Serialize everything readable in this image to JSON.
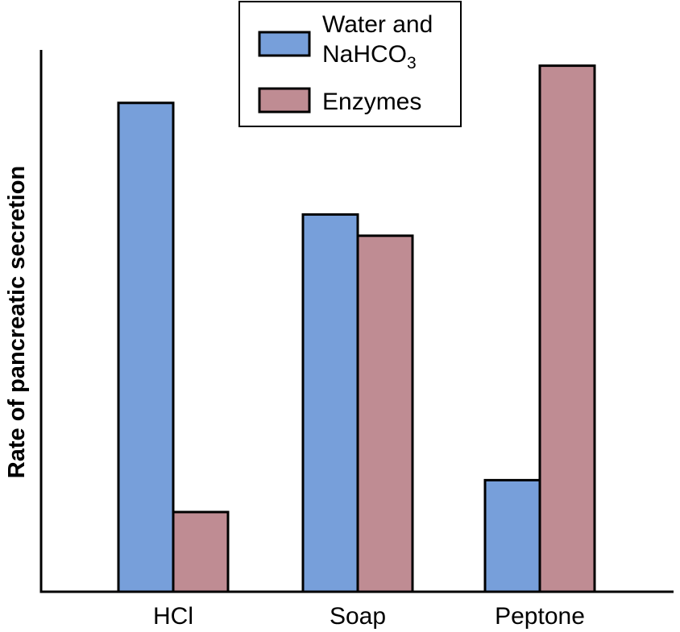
{
  "chart_data": {
    "type": "bar",
    "title": "",
    "xlabel": "",
    "ylabel": "Rate of pancreatic secretion",
    "categories": [
      "HCl",
      "Soap",
      "Peptone"
    ],
    "series": [
      {
        "name": "Water and NaHCO",
        "subscript": "3",
        "color": "#779fda",
        "values": [
          92,
          71,
          21
        ]
      },
      {
        "name": "Enzymes",
        "color": "#bf8c93",
        "values": [
          15,
          67,
          99
        ]
      }
    ],
    "ylim": [
      0,
      100
    ],
    "grid": false,
    "y_ticks": false,
    "legend_position": "top-center"
  }
}
